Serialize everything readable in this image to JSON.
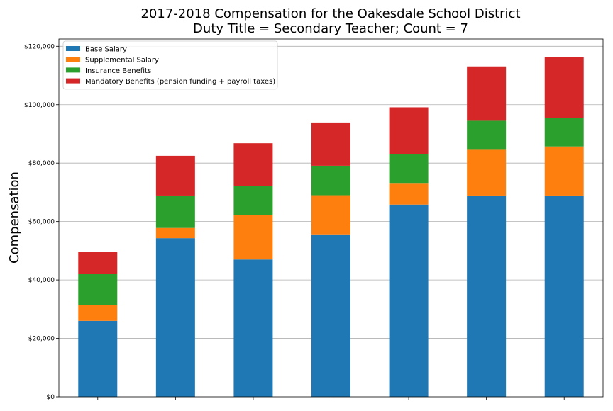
{
  "chart_data": {
    "type": "bar",
    "stacked": true,
    "title": "2017-2018 Compensation for the Oakesdale School District",
    "subtitle": "Duty Title = Secondary Teacher; Count = 7",
    "xlabel": "",
    "ylabel": "Compensation",
    "ylim": [
      0,
      122500
    ],
    "yticks": [
      0,
      20000,
      40000,
      60000,
      80000,
      100000,
      120000
    ],
    "ytick_labels": [
      "$0",
      "$20,000",
      "$40,000",
      "$60,000",
      "$80,000",
      "$100,000",
      "$120,000"
    ],
    "grid": "horizontal",
    "legend_position": "top-left",
    "categories": [
      "",
      "",
      "",
      "",
      "",
      "",
      ""
    ],
    "series": [
      {
        "name": "Base Salary",
        "color": "#1f77b4",
        "values": [
          26000,
          54300,
          47000,
          55600,
          65800,
          68900,
          68900
        ]
      },
      {
        "name": "Supplemental Salary",
        "color": "#ff7f0e",
        "values": [
          5300,
          3500,
          15300,
          13400,
          7400,
          15900,
          16800
        ]
      },
      {
        "name": "Insurance Benefits",
        "color": "#2ca02c",
        "values": [
          10900,
          11100,
          9900,
          10100,
          10000,
          9700,
          9800
        ]
      },
      {
        "name": "Mandatory Benefits (pension funding + payroll taxes)",
        "color": "#d62728",
        "values": [
          7500,
          13600,
          14600,
          14800,
          15900,
          18600,
          20900
        ]
      }
    ]
  }
}
